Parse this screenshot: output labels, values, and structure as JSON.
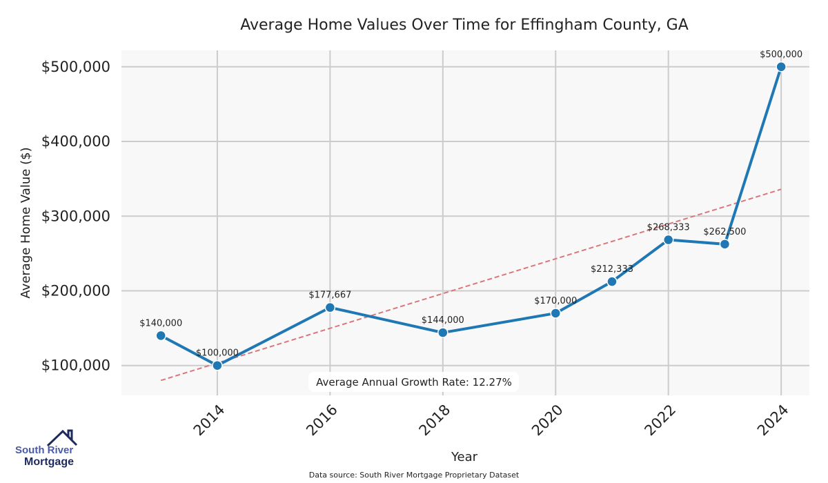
{
  "chart_data": {
    "type": "line",
    "title": "Average Home Values Over Time for Effingham County, GA",
    "xlabel": "Year",
    "ylabel": "Average Home Value ($)",
    "x": [
      2013,
      2014,
      2016,
      2018,
      2020,
      2021,
      2022,
      2023,
      2024
    ],
    "series": [
      {
        "name": "Average Home Value",
        "color": "#1f77b4",
        "values": [
          140000,
          100000,
          177667,
          144000,
          170000,
          212333,
          268333,
          262500,
          500000
        ],
        "labels": [
          "$140,000",
          "$100,000",
          "$177,667",
          "$144,000",
          "$170,000",
          "$212,333",
          "$268,333",
          "$262,500",
          "$500,000"
        ]
      }
    ],
    "trend": {
      "name": "Trend",
      "color": "#d9777a",
      "x": [
        2013,
        2024
      ],
      "values": [
        80000,
        336000
      ]
    },
    "xticks": [
      2014,
      2016,
      2018,
      2020,
      2022,
      2024
    ],
    "xtick_labels": [
      "2014",
      "2016",
      "2018",
      "2020",
      "2022",
      "2024"
    ],
    "yticks": [
      100000,
      200000,
      300000,
      400000,
      500000
    ],
    "ytick_labels": [
      "$100,000",
      "$200,000",
      "$300,000",
      "$400,000",
      "$500,000"
    ],
    "xlim": [
      2012.3,
      2024.5
    ],
    "ylim": [
      60000,
      522000
    ],
    "grid": true,
    "annotation": "Average Annual Growth Rate: 12.27%"
  },
  "logo": {
    "line1": "South River",
    "line2": "Mortgage"
  },
  "source": "Data source: South River Mortgage Proprietary Dataset"
}
